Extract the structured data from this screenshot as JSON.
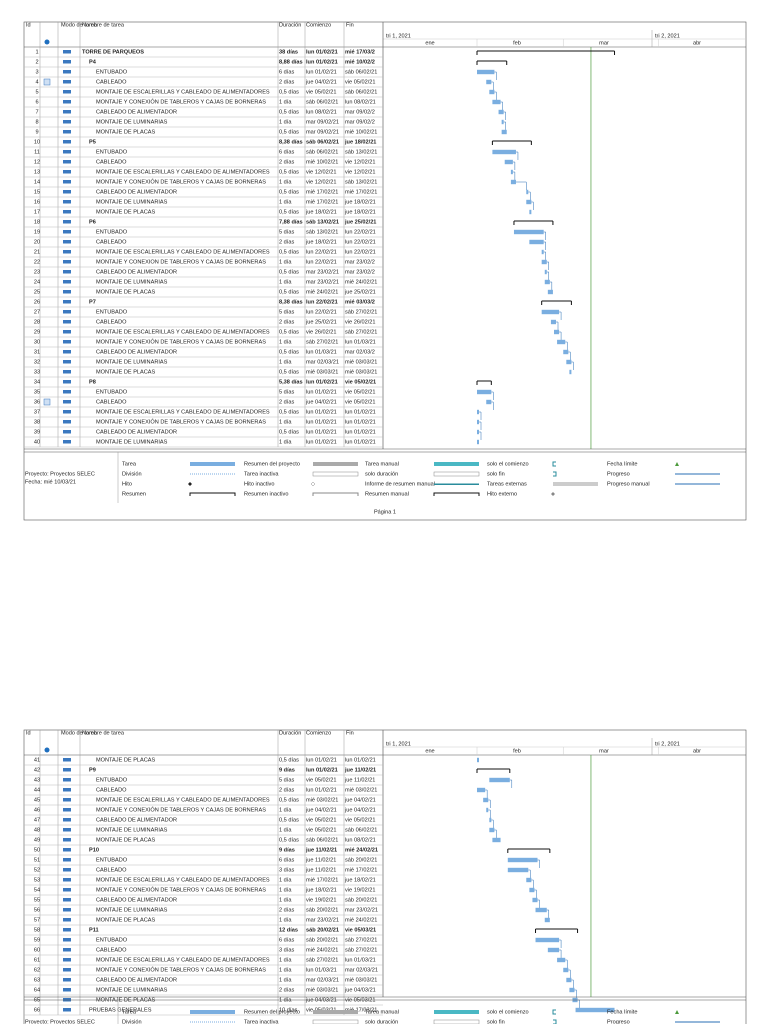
{
  "header": {
    "id": "Id",
    "info": "",
    "mode": "Modo de tarea",
    "name": "Nombre de tarea",
    "duration": "Duración",
    "start": "Comienzo",
    "end": "Fin",
    "quarter1": "tri 1, 2021",
    "quarter2": "tri 2, 2021",
    "months": [
      "ene",
      "feb",
      "mar",
      "abr"
    ]
  },
  "project": "Proyecto: Proyectos SELEC",
  "date": "Fecha: mié 10/03/21",
  "legend": [
    "Tarea",
    "División",
    "Hito",
    "Resumen",
    "Resumen del proyecto",
    "Tarea inactiva",
    "Hito inactivo",
    "Resumen inactivo",
    "Tarea manual",
    "solo duración",
    "Informe de resumen manual",
    "Resumen manual",
    "solo el comienzo",
    "solo fin",
    "Tareas externas",
    "Hito externo",
    "Fecha límite",
    "Progreso",
    "Progreso manual"
  ],
  "pages": [
    {
      "footer": "Página 1",
      "rows": [
        {
          "id": 1,
          "name": "TORRE DE PARQUEOS",
          "duration": "38 días",
          "start": "lun 01/02/21",
          "end": "mié 17/03/2",
          "level": 0,
          "summary": true
        },
        {
          "id": 2,
          "name": "P4",
          "duration": "8,88 días",
          "start": "lun 01/02/21",
          "end": "mié 10/02/2",
          "level": 1,
          "summary": true
        },
        {
          "id": 3,
          "name": "ENTUBADO",
          "duration": "6 días",
          "start": "lun 01/02/21",
          "end": "sáb 06/02/21",
          "level": 2
        },
        {
          "id": 4,
          "name": "CABLEADO",
          "duration": "2 días",
          "start": "jue 04/02/21",
          "end": "vie 05/02/21",
          "level": 2,
          "note": true
        },
        {
          "id": 5,
          "name": "MONTAJE DE ESCALERILLAS Y CABLEADO DE ALIMENTADORES",
          "duration": "0,5 días",
          "start": "vie 05/02/21",
          "end": "sáb 06/02/21",
          "level": 2
        },
        {
          "id": 6,
          "name": "MONTAJE Y CONEXIÓN DE TABLEROS Y CAJAS DE BORNERAS",
          "duration": "1 día",
          "start": "sáb 06/02/21",
          "end": "lun 08/02/21",
          "level": 2
        },
        {
          "id": 7,
          "name": "CABLEADO DE ALIMENTADOR",
          "duration": "0,5 días",
          "start": "lun 08/02/21",
          "end": "mar 09/02/2",
          "level": 2
        },
        {
          "id": 8,
          "name": "MONTAJE DE LUMINARIAS",
          "duration": "1 día",
          "start": "mar 09/02/21",
          "end": "mar 09/02/2",
          "level": 2
        },
        {
          "id": 9,
          "name": "MONTAJE DE PLACAS",
          "duration": "0,5 días",
          "start": "mar 09/02/21",
          "end": "mié 10/02/21",
          "level": 2
        },
        {
          "id": 10,
          "name": "P5",
          "duration": "8,38 días",
          "start": "sáb 06/02/21",
          "end": "jue 18/02/21",
          "level": 1,
          "summary": true
        },
        {
          "id": 11,
          "name": "ENTUBADO",
          "duration": "6 días",
          "start": "sáb 06/02/21",
          "end": "sáb 13/02/21",
          "level": 2
        },
        {
          "id": 12,
          "name": "CABLEADO",
          "duration": "2 días",
          "start": "mié 10/02/21",
          "end": "vie 12/02/21",
          "level": 2
        },
        {
          "id": 13,
          "name": "MONTAJE DE ESCALERILLAS Y CABLEADO DE ALIMENTADORES",
          "duration": "0,5 días",
          "start": "vie 12/02/21",
          "end": "vie 12/02/21",
          "level": 2
        },
        {
          "id": 14,
          "name": "MONTAJE Y CONEXIÓN DE TABLEROS Y CAJAS DE BORNERAS",
          "duration": "1 día",
          "start": "vie 12/02/21",
          "end": "sáb 13/02/21",
          "level": 2
        },
        {
          "id": 15,
          "name": "CABLEADO DE ALIMENTADOR",
          "duration": "0,5 días",
          "start": "mié 17/02/21",
          "end": "mié 17/02/21",
          "level": 2
        },
        {
          "id": 16,
          "name": "MONTAJE DE LUMINARIAS",
          "duration": "1 día",
          "start": "mié 17/02/21",
          "end": "jue 18/02/21",
          "level": 2
        },
        {
          "id": 17,
          "name": "MONTAJE DE PLACAS",
          "duration": "0,5 días",
          "start": "jue 18/02/21",
          "end": "jue 18/02/21",
          "level": 2
        },
        {
          "id": 18,
          "name": "P6",
          "duration": "7,88 días",
          "start": "sáb 13/02/21",
          "end": "jue 25/02/21",
          "level": 1,
          "summary": true
        },
        {
          "id": 19,
          "name": "ENTUBADO",
          "duration": "5 días",
          "start": "sáb 13/02/21",
          "end": "lun 22/02/21",
          "level": 2
        },
        {
          "id": 20,
          "name": "CABLEADO",
          "duration": "2 días",
          "start": "jue 18/02/21",
          "end": "lun 22/02/21",
          "level": 2
        },
        {
          "id": 21,
          "name": "MONTAJE DE ESCALERILLAS Y CABLEADO DE ALIMENTADORES",
          "duration": "0,5 días",
          "start": "lun 22/02/21",
          "end": "lun 22/02/21",
          "level": 2
        },
        {
          "id": 22,
          "name": "MONTAJE Y CONEXION DE TABLEROS Y CAJAS DE BORNERAS",
          "duration": "1 día",
          "start": "lun 22/02/21",
          "end": "mar 23/02/2",
          "level": 2
        },
        {
          "id": 23,
          "name": "CABLEADO DE ALIMENTADOR",
          "duration": "0,5 días",
          "start": "mar 23/02/21",
          "end": "mar 23/02/2",
          "level": 2
        },
        {
          "id": 24,
          "name": "MONTAJE DE LUMINARIAS",
          "duration": "1 día",
          "start": "mar 23/02/21",
          "end": "mié 24/02/21",
          "level": 2
        },
        {
          "id": 25,
          "name": "MONTAJE DE PLACAS",
          "duration": "0,5 días",
          "start": "mié 24/02/21",
          "end": "jue 25/02/21",
          "level": 2
        },
        {
          "id": 26,
          "name": "P7",
          "duration": "8,38 días",
          "start": "lun 22/02/21",
          "end": "mié 03/03/2",
          "level": 1,
          "summary": true
        },
        {
          "id": 27,
          "name": "ENTUBADO",
          "duration": "5 días",
          "start": "lun 22/02/21",
          "end": "sáb 27/02/21",
          "level": 2
        },
        {
          "id": 28,
          "name": "CABLEADO",
          "duration": "2 días",
          "start": "jue 25/02/21",
          "end": "vie 26/02/21",
          "level": 2
        },
        {
          "id": 29,
          "name": "MONTAJE DE ESCALERILLAS Y CABLEADO DE ALIMENTADORES",
          "duration": "0,5 días",
          "start": "vie 26/02/21",
          "end": "sáb 27/02/21",
          "level": 2
        },
        {
          "id": 30,
          "name": "MONTAJE Y CONEXIÓN DE TABLEROS Y CAJAS DE BORNERAS",
          "duration": "1 día",
          "start": "sáb 27/02/21",
          "end": "lun 01/03/21",
          "level": 2
        },
        {
          "id": 31,
          "name": "CABLEADO DE ALIMENTADOR",
          "duration": "0,5 días",
          "start": "lun 01/03/21",
          "end": "mar 02/03/2",
          "level": 2
        },
        {
          "id": 32,
          "name": "MONTAJE DE LUMINARIAS",
          "duration": "1 día",
          "start": "mar 02/03/21",
          "end": "mié 03/03/21",
          "level": 2
        },
        {
          "id": 33,
          "name": "MONTAJE DE PLACAS",
          "duration": "0,5 días",
          "start": "mié 03/03/21",
          "end": "mié 03/03/21",
          "level": 2
        },
        {
          "id": 34,
          "name": "P8",
          "duration": "5,38 días",
          "start": "lun 01/02/21",
          "end": "vie 05/02/21",
          "level": 1,
          "summary": true
        },
        {
          "id": 35,
          "name": "ENTUBADO",
          "duration": "5 días",
          "start": "lun 01/02/21",
          "end": "vie 05/02/21",
          "level": 2
        },
        {
          "id": 36,
          "name": "CABLEADO",
          "duration": "2 días",
          "start": "jue 04/02/21",
          "end": "vie 05/02/21",
          "level": 2,
          "note": true
        },
        {
          "id": 37,
          "name": "MONTAJE DE ESCALERILLAS Y CABLEADO DE ALIMENTADORES",
          "duration": "0,5 días",
          "start": "lun 01/02/21",
          "end": "lun 01/02/21",
          "level": 2
        },
        {
          "id": 38,
          "name": "MONTAJE Y CONEXIÓN DE TABLEROS Y CAJAS DE BORNERAS",
          "duration": "1 día",
          "start": "lun 01/02/21",
          "end": "lun 01/02/21",
          "level": 2
        },
        {
          "id": 39,
          "name": "CABLEADO DE ALIMENTADOR",
          "duration": "0,5 días",
          "start": "lun 01/02/21",
          "end": "lun 01/02/21",
          "level": 2
        },
        {
          "id": 40,
          "name": "MONTAJE DE LUMINARIAS",
          "duration": "1 día",
          "start": "lun 01/02/21",
          "end": "lun 01/02/21",
          "level": 2
        }
      ]
    },
    {
      "rows": [
        {
          "id": 41,
          "name": "MONTAJE DE PLACAS",
          "duration": "0,5 días",
          "start": "lun 01/02/21",
          "end": "lun 01/02/21",
          "level": 2
        },
        {
          "id": 42,
          "name": "P9",
          "duration": "9 días",
          "start": "lun 01/02/21",
          "end": "jue 11/02/21",
          "level": 1,
          "summary": true
        },
        {
          "id": 43,
          "name": "ENTUBADO",
          "duration": "5 días",
          "start": "vie 05/02/21",
          "end": "jue 11/02/21",
          "level": 2
        },
        {
          "id": 44,
          "name": "CABLEADO",
          "duration": "2 días",
          "start": "lun 01/02/21",
          "end": "mié 03/02/21",
          "level": 2
        },
        {
          "id": 45,
          "name": "MONTAJE DE ESCALERILLAS Y CABLEADO DE ALIMENTADORES",
          "duration": "0,5 días",
          "start": "mié 03/02/21",
          "end": "jue 04/02/21",
          "level": 2
        },
        {
          "id": 46,
          "name": "MONTAJE Y CONEXIÓN DE TABLEROS Y CAJAS DE BORNERAS",
          "duration": "1 día",
          "start": "jue 04/02/21",
          "end": "jue 04/02/21",
          "level": 2
        },
        {
          "id": 47,
          "name": "CABLEADO DE ALIMENTADOR",
          "duration": "0,5 días",
          "start": "vie 05/02/21",
          "end": "vie 05/02/21",
          "level": 2
        },
        {
          "id": 48,
          "name": "MONTAJE DE LUMINARIAS",
          "duration": "1 día",
          "start": "vie 05/02/21",
          "end": "sáb 06/02/21",
          "level": 2
        },
        {
          "id": 49,
          "name": "MONTAJE DE PLACAS",
          "duration": "0,5 días",
          "start": "sáb 06/02/21",
          "end": "lun 08/02/21",
          "level": 2
        },
        {
          "id": 50,
          "name": "P10",
          "duration": "9 días",
          "start": "jue 11/02/21",
          "end": "mié 24/02/21",
          "level": 1,
          "summary": true
        },
        {
          "id": 51,
          "name": "ENTUBADO",
          "duration": "6 días",
          "start": "jue 11/02/21",
          "end": "sáb 20/02/21",
          "level": 2
        },
        {
          "id": 52,
          "name": "CABLEADO",
          "duration": "3 días",
          "start": "jue 11/02/21",
          "end": "mié 17/02/21",
          "level": 2
        },
        {
          "id": 53,
          "name": "MONTAJE DE ESCALERILLAS Y CABLEADO DE ALIMENTADORES",
          "duration": "1 día",
          "start": "mié 17/02/21",
          "end": "jue 18/02/21",
          "level": 2
        },
        {
          "id": 54,
          "name": "MONTAJE Y CONEXIÓN DE TABLEROS Y CAJAS DE BORNERAS",
          "duration": "1 día",
          "start": "jue 18/02/21",
          "end": "vie 19/02/21",
          "level": 2
        },
        {
          "id": 55,
          "name": "CABLEADO DE ALIMENTADOR",
          "duration": "1 día",
          "start": "vie 19/02/21",
          "end": "sáb 20/02/21",
          "level": 2
        },
        {
          "id": 56,
          "name": "MONTAJE DE LUMINARIAS",
          "duration": "2 días",
          "start": "sáb 20/02/21",
          "end": "mar 23/02/21",
          "level": 2
        },
        {
          "id": 57,
          "name": "MONTAJE DE PLACAS",
          "duration": "1 día",
          "start": "mar 23/02/21",
          "end": "mié 24/02/21",
          "level": 2
        },
        {
          "id": 58,
          "name": "P11",
          "duration": "12 días",
          "start": "sáb 20/02/21",
          "end": "vie 05/03/21",
          "level": 1,
          "summary": true
        },
        {
          "id": 59,
          "name": "ENTUBADO",
          "duration": "6 días",
          "start": "sáb 20/02/21",
          "end": "sáb 27/02/21",
          "level": 2
        },
        {
          "id": 60,
          "name": "CABLEADO",
          "duration": "3 días",
          "start": "mié 24/02/21",
          "end": "sáb 27/02/21",
          "level": 2
        },
        {
          "id": 61,
          "name": "MONTAJE DE ESCALERILLAS Y CABLEADO DE ALIMENTADORES",
          "duration": "1 día",
          "start": "sáb 27/02/21",
          "end": "lun 01/03/21",
          "level": 2
        },
        {
          "id": 62,
          "name": "MONTAJE Y CONEXIÓN DE TABLEROS Y CAJAS DE BORNERAS",
          "duration": "1 día",
          "start": "lun 01/03/21",
          "end": "mar 02/03/21",
          "level": 2
        },
        {
          "id": 63,
          "name": "CABLEADO DE ALIMENTADOR",
          "duration": "1 día",
          "start": "mar 02/03/21",
          "end": "mié 03/03/21",
          "level": 2
        },
        {
          "id": 64,
          "name": "MONTAJE DE LUMINARIAS",
          "duration": "2 días",
          "start": "mié 03/03/21",
          "end": "jue 04/03/21",
          "level": 2
        },
        {
          "id": 65,
          "name": "MONTAJE DE PLACAS",
          "duration": "1 día",
          "start": "jue 04/03/21",
          "end": "vie 05/03/21",
          "level": 2
        },
        {
          "id": 66,
          "name": "PRUEBAS GENERALES",
          "duration": "10 días",
          "start": "vie 05/03/21",
          "end": "mié 17/03/21",
          "level": 1
        }
      ]
    }
  ]
}
